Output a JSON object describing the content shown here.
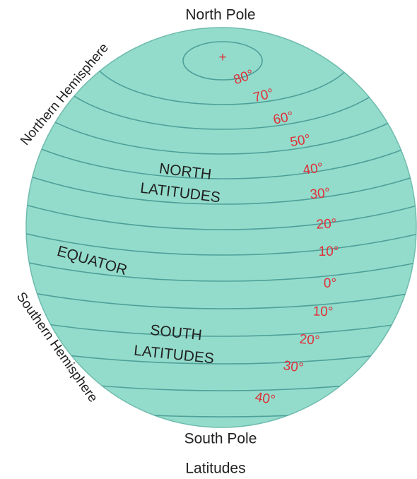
{
  "north_pole": "North Pole",
  "south_pole": "South Pole",
  "caption": "Latitudes",
  "hemispheres": [
    "Northern Hemisphere",
    "Southern Hemisphere"
  ],
  "north_latitudes": [
    "NORTH",
    "LATITUDES"
  ],
  "equator": "EQUATOR",
  "south_latitudes": [
    "SOUTH",
    "LATITUDES"
  ],
  "pole_marker": "+",
  "degree_labels": [
    "80°",
    "70°",
    "60°",
    "50°",
    "40°",
    "30°",
    "20°",
    "10°",
    "0°",
    "10°",
    "20°",
    "30°",
    "40°"
  ]
}
